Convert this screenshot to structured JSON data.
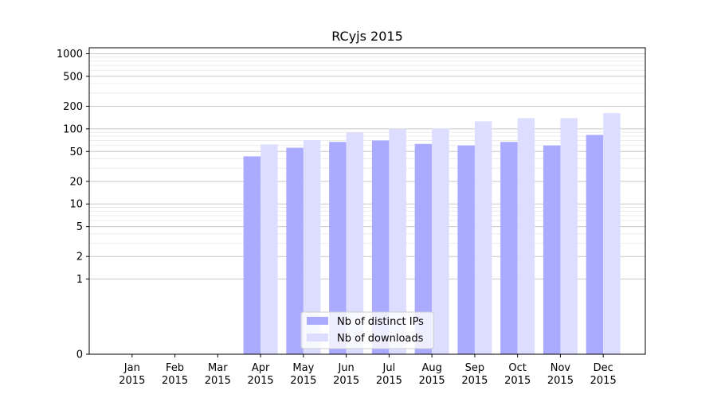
{
  "chart_data": {
    "type": "bar",
    "title": "RCyjs 2015",
    "xlabel": "",
    "ylabel": "",
    "yscale": "symlog",
    "ylim": [
      0,
      1200
    ],
    "yticks": [
      0,
      1,
      2,
      5,
      10,
      20,
      50,
      100,
      200,
      500,
      1000
    ],
    "ytick_labels": [
      "0",
      "1",
      "2",
      "5",
      "10",
      "20",
      "50",
      "100",
      "200",
      "500",
      "1000"
    ],
    "grid": true,
    "legend_position": "bottom-center",
    "categories": [
      [
        "Jan",
        "2015"
      ],
      [
        "Feb",
        "2015"
      ],
      [
        "Mar",
        "2015"
      ],
      [
        "Apr",
        "2015"
      ],
      [
        "May",
        "2015"
      ],
      [
        "Jun",
        "2015"
      ],
      [
        "Jul",
        "2015"
      ],
      [
        "Aug",
        "2015"
      ],
      [
        "Sep",
        "2015"
      ],
      [
        "Oct",
        "2015"
      ],
      [
        "Nov",
        "2015"
      ],
      [
        "Dec",
        "2015"
      ]
    ],
    "series": [
      {
        "name": "Nb of distinct IPs",
        "color": "#aaaaff",
        "values": [
          0,
          0,
          0,
          43,
          56,
          67,
          70,
          63,
          60,
          67,
          60,
          83
        ]
      },
      {
        "name": "Nb of downloads",
        "color": "#ddddff",
        "values": [
          0,
          0,
          0,
          62,
          71,
          89,
          100,
          101,
          126,
          139,
          139,
          162
        ]
      }
    ]
  }
}
